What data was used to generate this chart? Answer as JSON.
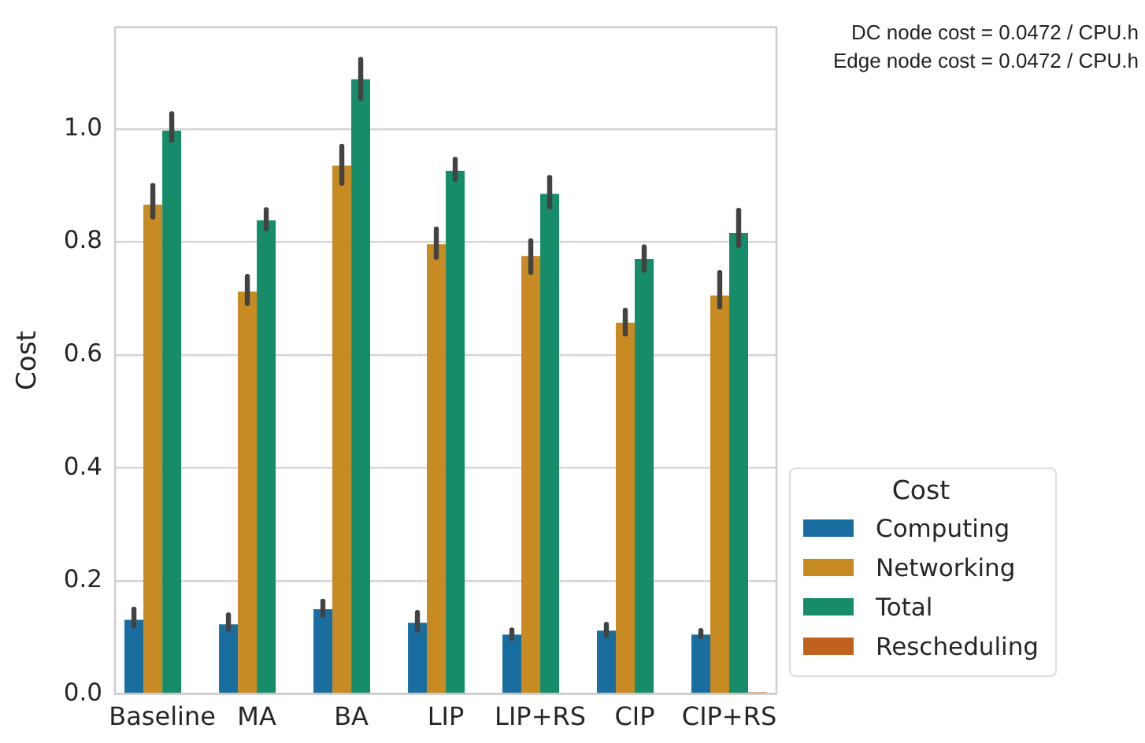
{
  "chart_data": {
    "type": "bar",
    "ylabel": "Cost",
    "legend_title": "Cost",
    "annotations": [
      "DC node cost = 0.0472 / CPU.h",
      "Edge node cost = 0.0472 / CPU.h"
    ],
    "categories": [
      "Baseline",
      "MA",
      "BA",
      "LIP",
      "LIP+RS",
      "CIP",
      "CIP+RS"
    ],
    "series": [
      {
        "name": "Computing",
        "color": "#1a6e9f",
        "values": [
          0.131,
          0.123,
          0.15,
          0.126,
          0.105,
          0.112,
          0.105
        ],
        "errors": [
          [
            0.12,
            0.15
          ],
          [
            0.114,
            0.14
          ],
          [
            0.139,
            0.164
          ],
          [
            0.113,
            0.144
          ],
          [
            0.098,
            0.113
          ],
          [
            0.103,
            0.123
          ],
          [
            0.101,
            0.112
          ]
        ]
      },
      {
        "name": "Networking",
        "color": "#c88a22",
        "values": [
          0.866,
          0.712,
          0.935,
          0.796,
          0.775,
          0.657,
          0.705
        ],
        "errors": [
          [
            0.844,
            0.9
          ],
          [
            0.691,
            0.739
          ],
          [
            0.904,
            0.969
          ],
          [
            0.773,
            0.823
          ],
          [
            0.746,
            0.802
          ],
          [
            0.637,
            0.679
          ],
          [
            0.685,
            0.746
          ]
        ]
      },
      {
        "name": "Total",
        "color": "#168c6a",
        "values": [
          0.997,
          0.838,
          1.088,
          0.926,
          0.885,
          0.77,
          0.816
        ],
        "errors": [
          [
            0.98,
            1.027
          ],
          [
            0.823,
            0.857
          ],
          [
            1.054,
            1.123
          ],
          [
            0.911,
            0.946
          ],
          [
            0.862,
            0.914
          ],
          [
            0.75,
            0.791
          ],
          [
            0.794,
            0.856
          ]
        ]
      },
      {
        "name": "Rescheduling",
        "color": "#c0621e",
        "values": [
          0,
          0,
          0,
          0,
          0,
          0,
          0.003
        ]
      }
    ],
    "ylim": [
      0,
      1.18
    ],
    "yticks": [
      {
        "value": 0,
        "label": "0.0"
      },
      {
        "value": 0.2,
        "label": "0.2"
      },
      {
        "value": 0.4,
        "label": "0.4"
      },
      {
        "value": 0.6,
        "label": "0.6"
      },
      {
        "value": 0.8,
        "label": "0.8"
      },
      {
        "value": 1,
        "label": "1.0"
      }
    ],
    "grid": "y",
    "legend": "right"
  }
}
